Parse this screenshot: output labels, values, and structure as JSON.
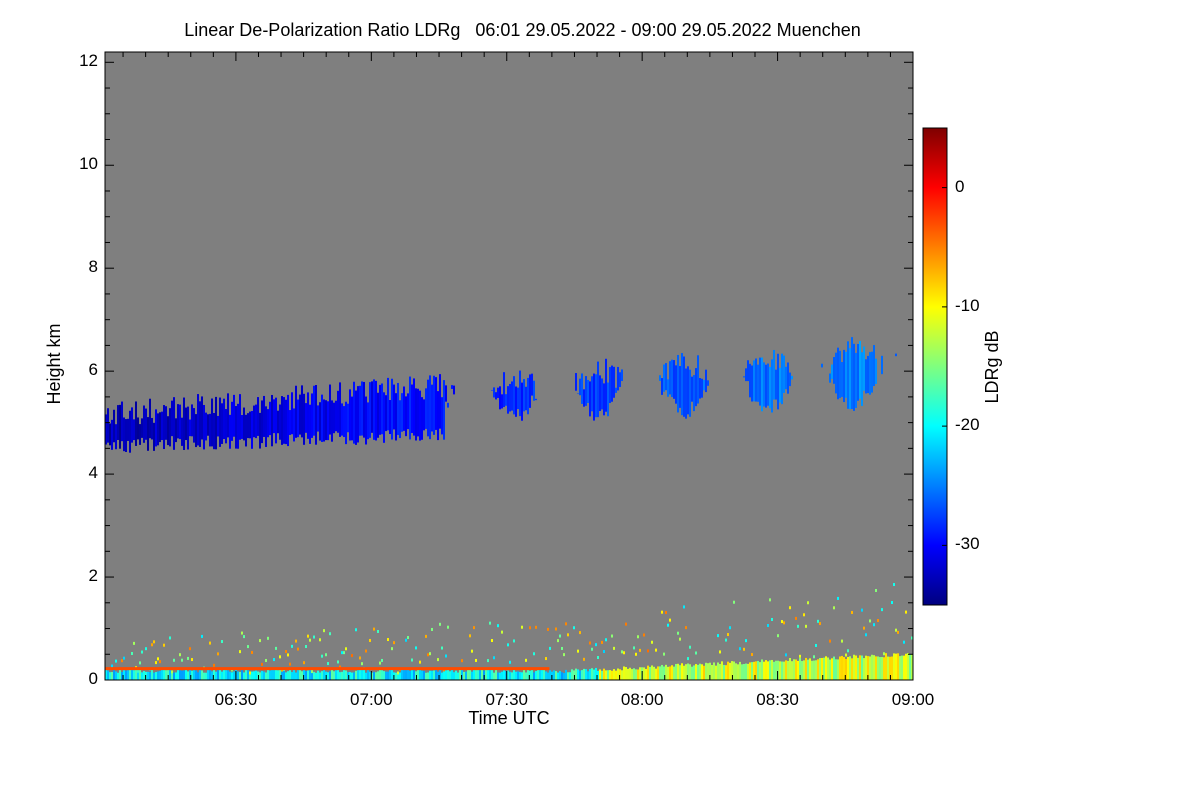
{
  "chart_data": {
    "type": "heatmap",
    "title": "Linear De-Polarization Ratio LDRg   06:01 29.05.2022 - 09:00 29.05.2022 Muenchen",
    "xlabel": "Time UTC",
    "ylabel": "Height km",
    "xlim_minutes": [
      361,
      540
    ],
    "ylim_km": [
      0,
      12.2
    ],
    "x_ticks": [
      {
        "minutes": 390,
        "label": "06:30"
      },
      {
        "minutes": 420,
        "label": "07:00"
      },
      {
        "minutes": 450,
        "label": "07:30"
      },
      {
        "minutes": 480,
        "label": "08:00"
      },
      {
        "minutes": 510,
        "label": "08:30"
      },
      {
        "minutes": 540,
        "label": "09:00"
      }
    ],
    "y_ticks": [
      {
        "km": 0,
        "label": "0"
      },
      {
        "km": 2,
        "label": "2"
      },
      {
        "km": 4,
        "label": "4"
      },
      {
        "km": 6,
        "label": "6"
      },
      {
        "km": 8,
        "label": "8"
      },
      {
        "km": 10,
        "label": "10"
      },
      {
        "km": 12,
        "label": "12"
      }
    ],
    "colorbar": {
      "label": "LDRg dB",
      "range_db": [
        -35,
        5
      ],
      "ticks": [
        {
          "db": 0,
          "label": "0"
        },
        {
          "db": -10,
          "label": "-10"
        },
        {
          "db": -20,
          "label": "-20"
        },
        {
          "db": -30,
          "label": "-30"
        }
      ],
      "colormap": [
        "#00007f",
        "#0000ff",
        "#007fff",
        "#00ffff",
        "#7fff7f",
        "#ffff00",
        "#ff7f00",
        "#ff0000",
        "#7f0000"
      ]
    },
    "no_data_color": "#7f7f7f",
    "features": [
      {
        "name": "ice cloud band",
        "time_start": "06:01",
        "time_end": "09:00",
        "base_km": [
          4.5,
          5.2
        ],
        "top_km": [
          5.5,
          6.9
        ],
        "ldr_db": [
          -33,
          -26
        ]
      },
      {
        "name": "boundary layer aerosol",
        "time_start": "06:01",
        "time_end": "09:00",
        "base_km": 0,
        "top_km": [
          0.3,
          1.2
        ],
        "ldr_db": [
          -20,
          -5
        ]
      },
      {
        "name": "surface layer",
        "height_km": 0.25,
        "ldr_db": -3
      }
    ]
  }
}
